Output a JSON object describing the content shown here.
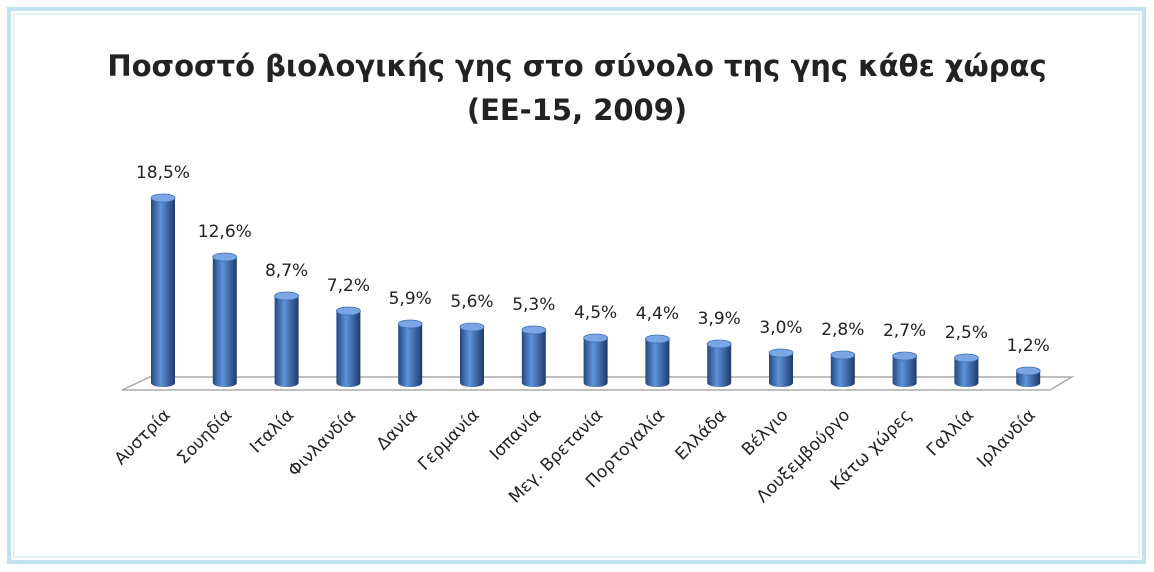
{
  "chart_data": {
    "type": "bar",
    "title": [
      "Ποσοστό βιολογικής γης στο σύνολο της γης κάθε χώρας",
      "(ΕΕ-15, 2009)"
    ],
    "categories": [
      "Αυστρία",
      "Σουηδία",
      "Ιταλία",
      "Φινλανδία",
      "Δανία",
      "Γερμανία",
      "Ισπανία",
      "Μεγ. Βρετανία",
      "Πορτογαλία",
      "Ελλάδα",
      "Βέλγιο",
      "Λουξεμβούργο",
      "Κάτω χώρες",
      "Γαλλία",
      "Ιρλανδία"
    ],
    "values": [
      18.5,
      12.6,
      8.7,
      7.2,
      5.9,
      5.6,
      5.3,
      4.5,
      4.4,
      3.9,
      3.0,
      2.8,
      2.7,
      2.5,
      1.2
    ],
    "value_labels": [
      "18,5%",
      "12,6%",
      "8,7%",
      "7,2%",
      "5,9%",
      "5,6%",
      "5,3%",
      "4,5%",
      "4,4%",
      "3,9%",
      "3,0%",
      "2,8%",
      "2,7%",
      "2,5%",
      "1,2%"
    ],
    "color": "#3d6db4"
  }
}
